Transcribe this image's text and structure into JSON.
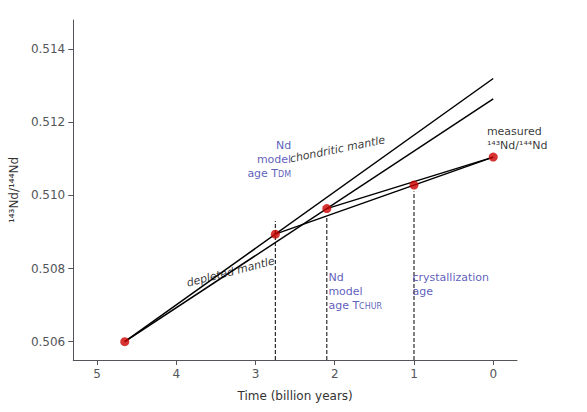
{
  "chart_data": {
    "type": "line",
    "xlabel": "Time (billion years)",
    "ylabel": "¹⁴³Nd/¹⁴⁴Nd",
    "xlim": [
      5.3,
      -0.3
    ],
    "ylim": [
      0.5055,
      0.5148
    ],
    "xticks": [
      5,
      4,
      3,
      2,
      1,
      0
    ],
    "yticks": [
      0.506,
      0.508,
      {
        "value": 0.51,
        "label": "0.510"
      },
      0.512,
      0.514
    ],
    "grid": false,
    "series": [
      {
        "type": "line",
        "color": "black",
        "line_style": "solid",
        "x": [
          4.65,
          0.0
        ],
        "values": [
          0.506,
          0.5132
        ]
      },
      {
        "type": "line",
        "color": "black",
        "line_style": "solid",
        "x": [
          4.65,
          0.0
        ],
        "values": [
          0.506,
          0.51264
        ]
      },
      {
        "type": "line",
        "color": "black",
        "line_style": "solid",
        "x": [
          2.75,
          0.0
        ],
        "values": [
          0.5089419,
          0.51105
        ]
      },
      {
        "type": "line",
        "color": "black",
        "line_style": "solid",
        "x": [
          2.1,
          0.0
        ],
        "values": [
          0.5096413,
          0.51105
        ]
      },
      {
        "type": "line",
        "color": "black",
        "line_style": "dashed",
        "x": [
          2.75,
          2.75
        ],
        "values": [
          0.5055,
          0.5093
        ]
      },
      {
        "type": "line",
        "color": "black",
        "line_style": "dashed",
        "x": [
          2.1,
          2.1
        ],
        "values": [
          0.5055,
          0.50941
        ]
      },
      {
        "type": "line",
        "color": "black",
        "line_style": "dashed",
        "x": [
          1.0,
          1.0
        ],
        "values": [
          0.5055,
          0.51011
        ]
      },
      {
        "type": "scatter",
        "color": "#cc0000",
        "marker": "circle",
        "x": [
          4.65,
          2.75,
          2.1,
          1.0,
          0.0
        ],
        "values": [
          0.506,
          0.5089419,
          0.5096413,
          0.5102834,
          0.51105
        ]
      }
    ],
    "annotations": [
      {
        "text": "Nd\nmodel\nage T",
        "subscript": "DM",
        "x": 2.55,
        "y": 0.5116,
        "color": "#3333aa"
      },
      {
        "text": "Nd\nmodel\nage T",
        "subscript": "CHUR",
        "x": 2.08,
        "y": 0.508,
        "color": "#3333aa"
      },
      {
        "text": "crystallization\nage",
        "x": 1.02,
        "y": 0.508,
        "color": "#3333aa"
      },
      {
        "text": "measured\n¹⁴³Nd/¹⁴⁴Nd",
        "x": 0.08,
        "y": 0.5116,
        "color": "black"
      },
      {
        "text": "depleted mantle",
        "x": 3.85,
        "y": 0.50745,
        "color": "black"
      },
      {
        "text": "chondritic mantle",
        "x": 2.55,
        "y": 0.51085,
        "color": "black"
      }
    ]
  }
}
